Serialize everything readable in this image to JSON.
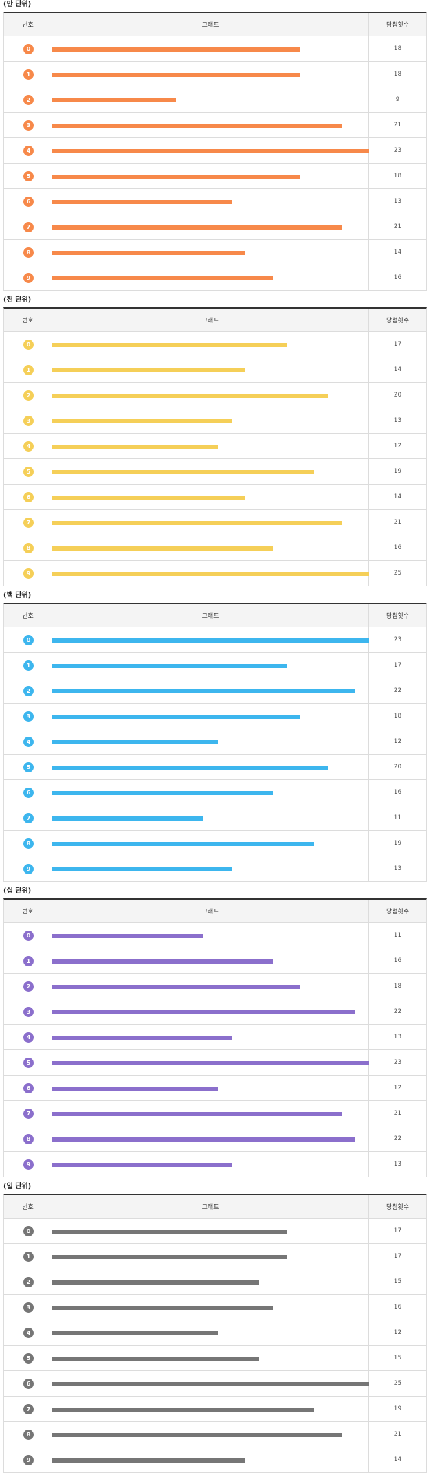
{
  "scale_max": 23,
  "sections": [
    {
      "title": "(만 단위)",
      "color": "#f7894a",
      "header": {
        "number": "번호",
        "graph": "그래프",
        "count": "당첨횟수"
      },
      "rows": [
        {
          "digit": "0",
          "count": 18
        },
        {
          "digit": "1",
          "count": 18
        },
        {
          "digit": "2",
          "count": 9
        },
        {
          "digit": "3",
          "count": 21
        },
        {
          "digit": "4",
          "count": 23
        },
        {
          "digit": "5",
          "count": 18
        },
        {
          "digit": "6",
          "count": 13
        },
        {
          "digit": "7",
          "count": 21
        },
        {
          "digit": "8",
          "count": 14
        },
        {
          "digit": "9",
          "count": 16
        }
      ]
    },
    {
      "title": "(천 단위)",
      "color": "#f5cf58",
      "header": {
        "number": "번호",
        "graph": "그래프",
        "count": "당첨횟수"
      },
      "rows": [
        {
          "digit": "0",
          "count": 17
        },
        {
          "digit": "1",
          "count": 14
        },
        {
          "digit": "2",
          "count": 20
        },
        {
          "digit": "3",
          "count": 13
        },
        {
          "digit": "4",
          "count": 12
        },
        {
          "digit": "5",
          "count": 19
        },
        {
          "digit": "6",
          "count": 14
        },
        {
          "digit": "7",
          "count": 21
        },
        {
          "digit": "8",
          "count": 16
        },
        {
          "digit": "9",
          "count": 25
        }
      ]
    },
    {
      "title": "(백 단위)",
      "color": "#3db6ee",
      "header": {
        "number": "번호",
        "graph": "그래프",
        "count": "당첨횟수"
      },
      "rows": [
        {
          "digit": "0",
          "count": 23
        },
        {
          "digit": "1",
          "count": 17
        },
        {
          "digit": "2",
          "count": 22
        },
        {
          "digit": "3",
          "count": 18
        },
        {
          "digit": "4",
          "count": 12
        },
        {
          "digit": "5",
          "count": 20
        },
        {
          "digit": "6",
          "count": 16
        },
        {
          "digit": "7",
          "count": 11
        },
        {
          "digit": "8",
          "count": 19
        },
        {
          "digit": "9",
          "count": 13
        }
      ]
    },
    {
      "title": "(십 단위)",
      "color": "#8b6fcc",
      "header": {
        "number": "번호",
        "graph": "그래프",
        "count": "당첨횟수"
      },
      "rows": [
        {
          "digit": "0",
          "count": 11
        },
        {
          "digit": "1",
          "count": 16
        },
        {
          "digit": "2",
          "count": 18
        },
        {
          "digit": "3",
          "count": 22
        },
        {
          "digit": "4",
          "count": 13
        },
        {
          "digit": "5",
          "count": 23
        },
        {
          "digit": "6",
          "count": 12
        },
        {
          "digit": "7",
          "count": 21
        },
        {
          "digit": "8",
          "count": 22
        },
        {
          "digit": "9",
          "count": 13
        }
      ]
    },
    {
      "title": "(일 단위)",
      "color": "#767676",
      "header": {
        "number": "번호",
        "graph": "그래프",
        "count": "당첨횟수"
      },
      "rows": [
        {
          "digit": "0",
          "count": 17
        },
        {
          "digit": "1",
          "count": 17
        },
        {
          "digit": "2",
          "count": 15
        },
        {
          "digit": "3",
          "count": 16
        },
        {
          "digit": "4",
          "count": 12
        },
        {
          "digit": "5",
          "count": 15
        },
        {
          "digit": "6",
          "count": 25
        },
        {
          "digit": "7",
          "count": 19
        },
        {
          "digit": "8",
          "count": 21
        },
        {
          "digit": "9",
          "count": 14
        }
      ]
    }
  ],
  "chart_data": [
    {
      "type": "bar",
      "title": "(만 단위)",
      "categories": [
        "0",
        "1",
        "2",
        "3",
        "4",
        "5",
        "6",
        "7",
        "8",
        "9"
      ],
      "values": [
        18,
        18,
        9,
        21,
        23,
        18,
        13,
        21,
        14,
        16
      ]
    },
    {
      "type": "bar",
      "title": "(천 단위)",
      "categories": [
        "0",
        "1",
        "2",
        "3",
        "4",
        "5",
        "6",
        "7",
        "8",
        "9"
      ],
      "values": [
        17,
        14,
        20,
        13,
        12,
        19,
        14,
        21,
        16,
        25
      ]
    },
    {
      "type": "bar",
      "title": "(백 단위)",
      "categories": [
        "0",
        "1",
        "2",
        "3",
        "4",
        "5",
        "6",
        "7",
        "8",
        "9"
      ],
      "values": [
        23,
        17,
        22,
        18,
        12,
        20,
        16,
        11,
        19,
        13
      ]
    },
    {
      "type": "bar",
      "title": "(십 단위)",
      "categories": [
        "0",
        "1",
        "2",
        "3",
        "4",
        "5",
        "6",
        "7",
        "8",
        "9"
      ],
      "values": [
        11,
        16,
        18,
        22,
        13,
        23,
        12,
        21,
        22,
        13
      ]
    },
    {
      "type": "bar",
      "title": "(일 단위)",
      "categories": [
        "0",
        "1",
        "2",
        "3",
        "4",
        "5",
        "6",
        "7",
        "8",
        "9"
      ],
      "values": [
        17,
        17,
        15,
        16,
        12,
        15,
        25,
        19,
        21,
        14
      ]
    }
  ]
}
